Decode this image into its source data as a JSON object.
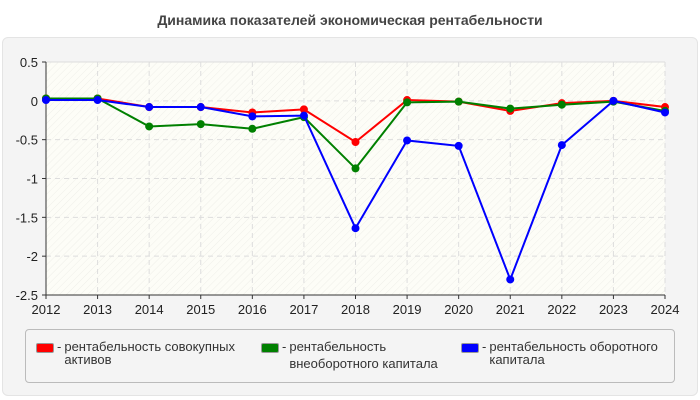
{
  "chart_data": {
    "type": "line",
    "title": "Динамика показателей экономическая рентабельности",
    "xlabel": "",
    "ylabel": "",
    "x": [
      2012,
      2013,
      2014,
      2015,
      2016,
      2017,
      2018,
      2019,
      2020,
      2021,
      2022,
      2023,
      2024
    ],
    "ylim": [
      -2.5,
      0.5
    ],
    "yticks": [
      "0.5",
      "0",
      "-0.5",
      "-1",
      "-1.5",
      "-2",
      "-2.5"
    ],
    "ytick_values": [
      0.5,
      0,
      -0.5,
      -1,
      -1.5,
      -2,
      -2.5
    ],
    "grid": true,
    "legend_position": "bottom",
    "series": [
      {
        "name": "рентабельность совокупных активов",
        "color": "#ff0000",
        "values": [
          0.03,
          0.03,
          -0.08,
          -0.08,
          -0.15,
          -0.11,
          -0.53,
          0.01,
          -0.01,
          -0.13,
          -0.03,
          0.0,
          -0.08
        ]
      },
      {
        "name": "рентабельность внеоборотного капитала",
        "color": "#008000",
        "values": [
          0.03,
          0.03,
          -0.33,
          -0.3,
          -0.36,
          -0.21,
          -0.87,
          -0.02,
          -0.01,
          -0.1,
          -0.05,
          -0.01,
          -0.13
        ]
      },
      {
        "name": "рентабельность оборотного капитала",
        "color": "#0000ff",
        "values": [
          0.01,
          0.01,
          -0.08,
          -0.08,
          -0.2,
          -0.19,
          -1.64,
          -0.51,
          -0.58,
          -2.3,
          -0.57,
          0.0,
          -0.15
        ]
      }
    ]
  }
}
